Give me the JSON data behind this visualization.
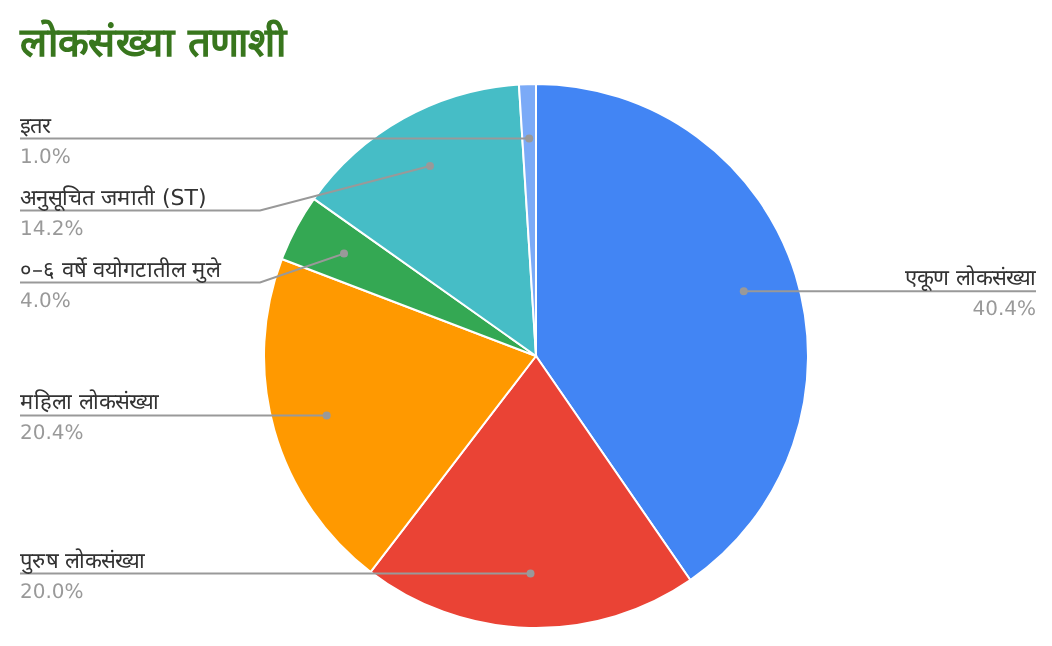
{
  "chart_data": {
    "type": "pie",
    "title": "लोकसंख्या तणाशी",
    "categories": [
      "एकूण लोकसंख्या",
      "पुरुष लोकसंख्या",
      "महिला लोकसंख्या",
      "०–६ वर्षे वयोगटातील मुले",
      "अनुसूचित जमाती (ST)",
      "इतर"
    ],
    "values": [
      40.4,
      20.0,
      20.4,
      4.0,
      14.2,
      1.0
    ],
    "colors": [
      "#4285f4",
      "#ea4335",
      "#ff9900",
      "#34a853",
      "#46bdc6",
      "#7baaf7"
    ],
    "value_labels": [
      "40.4%",
      "20.0%",
      "20.4%",
      "4.0%",
      "14.2%",
      "1.0%"
    ]
  }
}
